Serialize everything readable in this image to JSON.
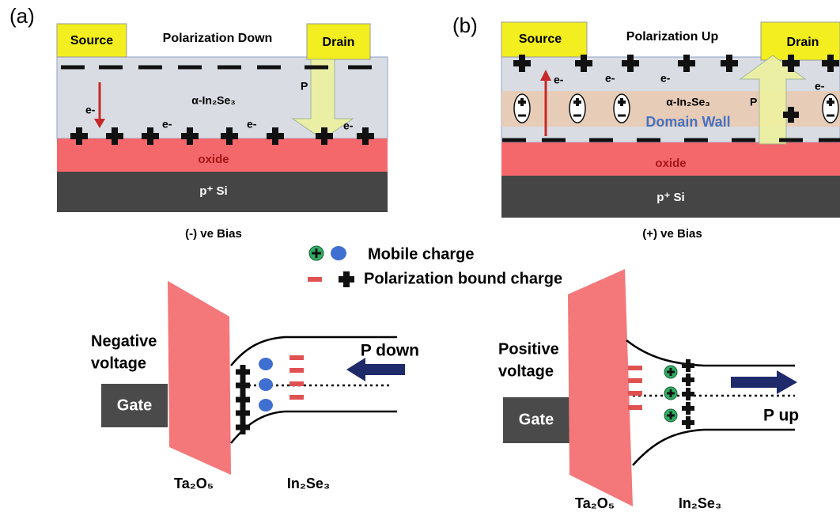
{
  "panel_a": {
    "label": "(a)",
    "source": "Source",
    "title": "Polarization Down",
    "drain": "Drain",
    "p": "P",
    "material": "α-In₂Se₃",
    "electrons": [
      "e-",
      "e-",
      "e-",
      "e-"
    ],
    "oxide": "oxide",
    "substrate": "p⁺ Si",
    "caption": "(-) ve Bias"
  },
  "panel_b": {
    "label": "(b)",
    "source": "Source",
    "title": "Polarization Up",
    "drain": "Drain",
    "p": "P",
    "material": "α-In₂Se₃",
    "domain_wall": "Domain Wall",
    "electrons": [
      "e-",
      "e-",
      "e-",
      "e-"
    ],
    "oxide": "oxide",
    "substrate": "p⁺ Si",
    "caption": "(+) ve Bias"
  },
  "legend": {
    "mobile": "Mobile charge",
    "bound": "Polarization bound charge"
  },
  "band_left": {
    "voltage": [
      "Negative",
      "voltage"
    ],
    "gate": "Gate",
    "arrow": "P down",
    "insulator": "Ta₂O₅",
    "semiconductor": "In₂Se₃"
  },
  "band_right": {
    "voltage": [
      "Positive",
      "voltage"
    ],
    "gate": "Gate",
    "arrow": "P up",
    "insulator": "Ta₂O₅",
    "semiconductor": "In₂Se₃"
  }
}
